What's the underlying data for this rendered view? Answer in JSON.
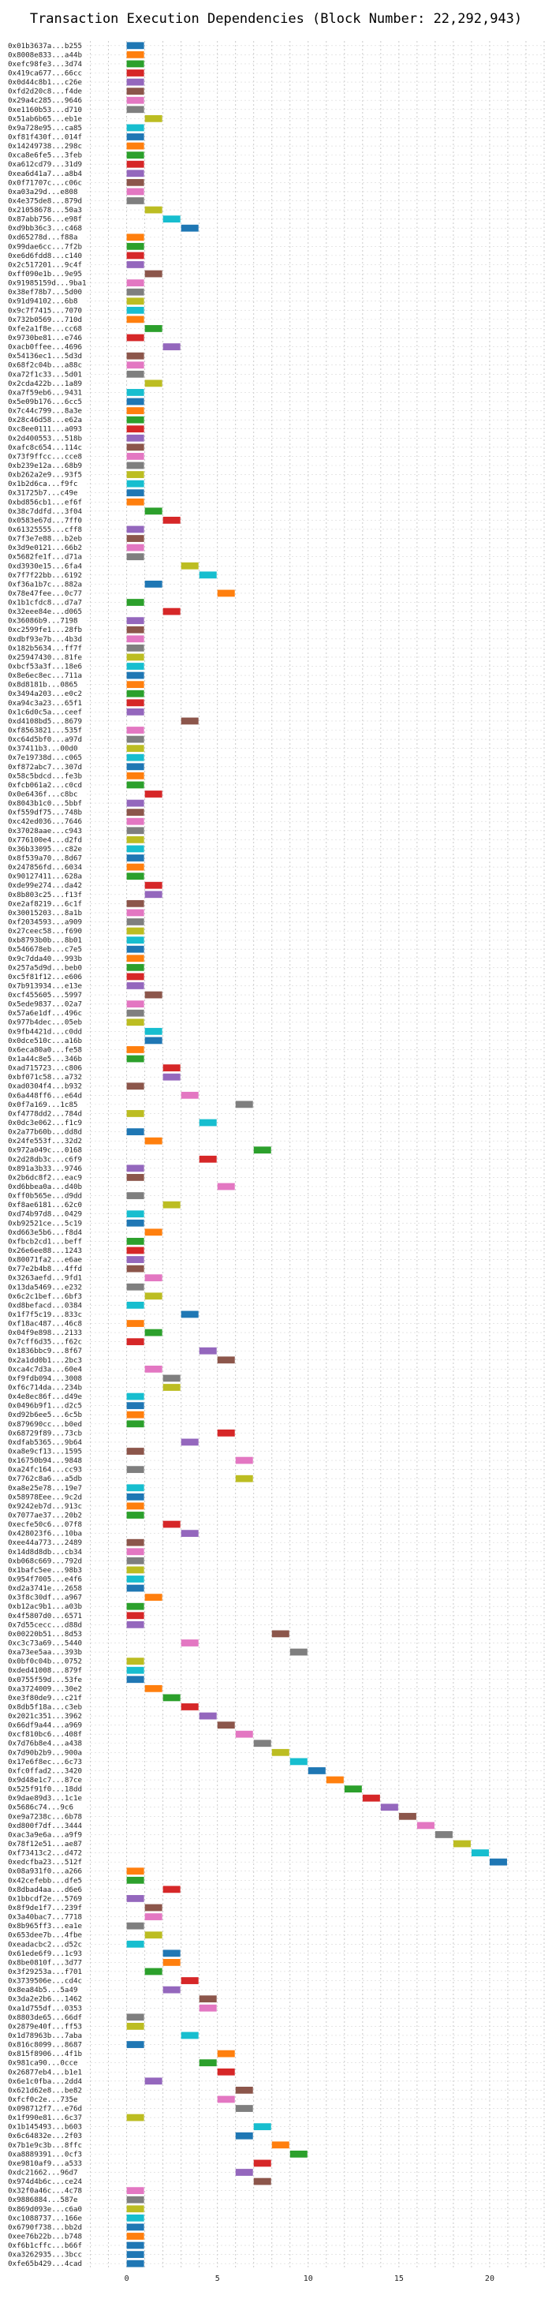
{
  "chart_data": {
    "type": "bar",
    "orientation": "horizontal",
    "title": "Transaction Execution Dependencies (Block Number: 22,292,943)",
    "xlabel": "",
    "ylabel": "",
    "xlim": [
      -2.2,
      23.0
    ],
    "x_ticks": [
      0,
      5,
      10,
      15,
      20
    ],
    "grid": true,
    "grid_style": "dotted",
    "bar_width": 1,
    "colors": [
      "#1f77b4",
      "#ff7f0e",
      "#2ca02c",
      "#d62728",
      "#9467bd",
      "#8c564b",
      "#e377c2",
      "#7f7f7f",
      "#bcbd22",
      "#17becf"
    ],
    "categories": [
      "0x01b3637a...b255",
      "0x8008e833...a44b",
      "0xefc98fe3...3d74",
      "0x419ca677...66cc",
      "0x0d44c8b1...c26e",
      "0xfd2d20c8...f4de",
      "0x29a4c285...9646",
      "0xe1160b53...d710",
      "0x51ab6b65...eb1e",
      "0x9a728e95...ca85",
      "0xf81f430f...014f",
      "0x14249738...298c",
      "0xca8e6fe5...3feb",
      "0xa612cd79...31d9",
      "0xea6d41a7...a8b4",
      "0x0f71707c...c06c",
      "0xa03a29d...e808",
      "0x4e375de8...879d",
      "0x21058678...50a3",
      "0x87abb756...e98f",
      "0xd9bb36c3...c468",
      "0xd65278d...f88a",
      "0x99dae6cc...7f2b",
      "0xe6d6fdd8...c140",
      "0x2c517201...9c4f",
      "0xff090e1b...9e95",
      "0x91985159d...9ba1",
      "0x38ef78b7...5d00",
      "0x91d94102...6b8",
      "0x9c7f7415...7070",
      "0x732b0569...710d",
      "0xfe2a1f8e...cc68",
      "0x9730be81...e746",
      "0xacb0ffee...4696",
      "0x54136ec1...5d3d",
      "0x68f2c04b...a88c",
      "0xa72f1c33...5d01",
      "0x2cda422b...1a89",
      "0xa7f59eb6...9431",
      "0x5e09b176...6cc5",
      "0x7c44c799...8a3e",
      "0x28c46d58...e62a",
      "0xc8ee0111...a093",
      "0x2d400553...518b",
      "0xafc8c654...114c",
      "0x73f9ffcc...cce8",
      "0xb239e12a...68b9",
      "0xb262a2e9...93f5",
      "0x1b2d6ca...f9fc",
      "0x31725b7...c49e",
      "0xbd856cb1...ef6f",
      "0x38c7ddfd...3f04",
      "0x0583e67d...7ff0",
      "0x61325555...cff8",
      "0x7f3e7e88...b2eb",
      "0x3d9e0121...66b2",
      "0x5682fe1f...d71a",
      "0xd3930e15...6fa4",
      "0x7f7f22bb...6192",
      "0xf36a1b7c...882a",
      "0x78e47fee...0c77",
      "0x1b1cfdc8...d7a7",
      "0x32eee84e...d065",
      "0x36086b9...7198",
      "0xc2599fe1...28fb",
      "0xdbf93e7b...4b3d",
      "0x182b5634...ff7f",
      "0x25947430...81fe",
      "0xbcf53a3f...18e6",
      "0x8e6ec8ec...711a",
      "0x8d8181b...0865",
      "0x3494a203...e0c2",
      "0xa94c3a23...65f1",
      "0x1c6d0c5a...ceef",
      "0xd4108bd5...8679",
      "0xf8563821...535f",
      "0xc64d5bf0...a97d",
      "0x37411b3...00d0",
      "0x7e19738d...c065",
      "0xf872abc7...307d",
      "0x58c5bdcd...fe3b",
      "0xfcb061a2...c0cd",
      "0x0e6436f...c8bc",
      "0x8043b1c0...5bbf",
      "0xf559df75...748b",
      "0xc42ed036...7646",
      "0x37028aae...c943",
      "0x776100e4...d2fd",
      "0x36b33095...c82e",
      "0x8f539a70...8d67",
      "0x247856fd...6034",
      "0x90127411...628a",
      "0xde99e274...da42",
      "0x8b803c25...f13f",
      "0xe2af8219...6c1f",
      "0x30015203...8a1b",
      "0xf2034593...a909",
      "0x27ceec58...f690",
      "0xb8793b0b...8b01",
      "0x546678eb...c7e5",
      "0x9c7dda40...993b",
      "0x257a5d9d...beb0",
      "0xc5f81f12...e606",
      "0x7b913934...e13e",
      "0xcf455605...5997",
      "0x5ede9837...02a7",
      "0x57a6e1df...496c",
      "0x977b4dec...05eb",
      "0x9fb4421d...c0dd",
      "0x0dce510c...a16b",
      "0x6eca80a0...fe58",
      "0x1a44c8e5...346b",
      "0xad715723...c806",
      "0xbf071c58...a732",
      "0xad0304f4...b932",
      "0x6a448ff6...e64d",
      "0x0f7a169...1c85",
      "0xf4778dd2...784d",
      "0x0dc3e062...f1c9",
      "0x2a77b60b...dd8d",
      "0x24fe553f...32d2",
      "0x972a049c...0168",
      "0x2d28db3c...c6f9",
      "0x891a3b33...9746",
      "0x2b6dc8f2...eac9",
      "0xd6bbea0a...d40b",
      "0xff0b565e...d9dd",
      "0xf8ae6181...62c0",
      "0xd74b97d8...0429",
      "0xb92521ce...5c19",
      "0xd663e5b6...f8d4",
      "0xfbcb2cd1...beff",
      "0x26e6ee88...1243",
      "0x80071fa2...e6ae",
      "0x77e2b4b8...4ffd",
      "0x3263aefd...9fd1",
      "0x13da5469...e232",
      "0x6c2c1bef...6bf3",
      "0xd8befacd...0384",
      "0x1f7f5c19...833c",
      "0xf18ac487...46c8",
      "0x04f9e898...2133",
      "0x7cff6d35...f62c",
      "0x1836bbc9...8f67",
      "0x2a1dd0b1...2bc3",
      "0xca4c7d3a...60e4",
      "0xf9fdb094...3008",
      "0xf6c714da...234b",
      "0x4e8ec86f...d49e",
      "0x0496b9f1...d2c5",
      "0xd92b6ee5...6c5b",
      "0x879690cc...b0ed",
      "0x68729f89...73cb",
      "0xdfab5365...9b64",
      "0xa8e9cf13...1595",
      "0x16750b94...9848",
      "0xa24fc164...cc93",
      "0x7762c8a6...a5db",
      "0xa8e25e78...19e7",
      "0x58978Eee...9c2d",
      "0x9242eb7d...913c",
      "0x7077ae37...20b2",
      "0xecfe50c6...07f8",
      "0x428023f6...10ba",
      "0xee44a773...2489",
      "0x14d8d8db...cb34",
      "0xb068c669...792d",
      "0x1bafc5ee...98b3",
      "0x954f7005...e4f6",
      "0xd2a3741e...2658",
      "0x3f8c30df...a967",
      "0xb12ac9b1...a03b",
      "0x4f5807d0...6571",
      "0x7d55cecc...d88d",
      "0x00220b51...8d53",
      "0xc3c73a69...5440",
      "0xa73ee5aa...393b",
      "0x0bf0c04b...0752",
      "0xded41008...879f",
      "0x0755f59d...53fe",
      "0xa3724009...30e2",
      "0xe3f80de9...c21f",
      "0x8db5f18a...c3eb",
      "0x2021c351...3962",
      "0x66df9a44...a969",
      "0xcf810bc6...408f",
      "0x7d76b8e4...a438",
      "0x7d90b2b9...900a",
      "0x17e6f8ec...6c73",
      "0xfc0ffad2...3420",
      "0x9d48e1c7...87ce",
      "0x525f91f0...18dd",
      "0x9dae89d3...1c1e",
      "0x5686c74...9c6",
      "0xe9a7238c...6b78",
      "0xd800f7df...3444",
      "0xac3a9e6a...a9f9",
      "0x78f12e51...ae87",
      "0xf73413c2...d472",
      "0xedcfba23...512f",
      "0x08a931f0...a266",
      "0x42cefebb...dfe5",
      "0x8dbad4aa...d6e6",
      "0x1bbcdf2e...5769",
      "0x8f9de1f7...239f",
      "0x3a40bac7...7718",
      "0x8b965ff3...ea1e",
      "0x653dee7b...4fbe",
      "0xeadacbc2...d52c",
      "0x61ede6f9...1c93",
      "0x8be0810f...3d77",
      "0x3f29253a...f701",
      "0x3739506e...cd4c",
      "0x8ea84b5...5a49",
      "0x3da2e2b6...1462",
      "0xa1d755df...0353",
      "0x8803de65...66df",
      "0x2879e40f...ff53",
      "0x1d78963b...7aba",
      "0x816c8099...8687",
      "0x815f8906...4f1b",
      "0x981ca90...0cce",
      "0x26877eb4...b1e1",
      "0x6e1c0fba...2dd4",
      "0x621d62e8...be82",
      "0xfcf0c2e...735e",
      "0x098712f7...e76d",
      "0x1f990e81...6c37",
      "0x1b145493...b603",
      "0x6c64832e...2f03",
      "0x7b1e9c3b...8ffc",
      "0xa8889391...0cf3",
      "0xe9810af9...a533",
      "0xdc21662...96d7",
      "0x974d4b6c...ce24",
      "0x32f0a46c...4c78",
      "0x9886884...587e",
      "0x869d093e...c6a0",
      "0xc1088737...166e",
      "0x6790f738...bb2d",
      "0xee76b22b...b748",
      "0xf6b1cffc...b66f",
      "0xa3262935...3bcc",
      "0xfe65b429...4cad"
    ],
    "starts": [
      0,
      0,
      0,
      0,
      0,
      0,
      0,
      0,
      1,
      0,
      0,
      0,
      0,
      0,
      0,
      0,
      0,
      0,
      1,
      2,
      3,
      0,
      0,
      0,
      0,
      1,
      0,
      0,
      0,
      0,
      0,
      1,
      0,
      2,
      0,
      0,
      0,
      1,
      0,
      0,
      0,
      0,
      0,
      0,
      0,
      0,
      0,
      0,
      0,
      0,
      0,
      1,
      2,
      0,
      0,
      0,
      0,
      3,
      4,
      1,
      5,
      0,
      2,
      0,
      0,
      0,
      0,
      0,
      0,
      0,
      0,
      0,
      0,
      0,
      3,
      0,
      0,
      0,
      0,
      0,
      0,
      0,
      1,
      0,
      0,
      0,
      0,
      0,
      0,
      0,
      0,
      0,
      1,
      1,
      0,
      0,
      0,
      0,
      0,
      0,
      0,
      0,
      0,
      0,
      1,
      0,
      0,
      0,
      1,
      1,
      0,
      0,
      2,
      2,
      0,
      3,
      6,
      0,
      4,
      0,
      1,
      7,
      4,
      0,
      0,
      5,
      0,
      2,
      0,
      0,
      1,
      0,
      0,
      0,
      0,
      1,
      0,
      1,
      0,
      3,
      0,
      1,
      0,
      4,
      5,
      1,
      2,
      2,
      0,
      0,
      0,
      0,
      5,
      3,
      0,
      6,
      0,
      6,
      0,
      0,
      0,
      0,
      2,
      3,
      0,
      0,
      0,
      0,
      0,
      0,
      1,
      0,
      0,
      0,
      8,
      3,
      9,
      0,
      0,
      0,
      1,
      2,
      3,
      4,
      5,
      6,
      7,
      8,
      9,
      10,
      11,
      12,
      13,
      14,
      15,
      16,
      17,
      18,
      19,
      20,
      0,
      0,
      2,
      0,
      1,
      1,
      0,
      1,
      0,
      2,
      2,
      1,
      3,
      2,
      4,
      4,
      0,
      0,
      3,
      0,
      5,
      4,
      5,
      1,
      6,
      5,
      6,
      0,
      7,
      6,
      8,
      9,
      7,
      6,
      7,
      0,
      0
    ],
    "colors_idx": [
      0,
      1,
      2,
      3,
      4,
      5,
      6,
      7,
      8,
      9,
      0,
      1,
      2,
      3,
      4,
      5,
      6,
      7,
      8,
      9,
      0,
      1,
      2,
      3,
      4,
      5,
      6,
      7,
      8,
      9,
      1,
      2,
      3,
      4,
      5,
      6,
      7,
      8,
      9,
      0,
      1,
      2,
      3,
      4,
      5,
      6,
      7,
      8,
      9,
      0,
      1,
      2,
      3,
      4,
      5,
      6,
      7,
      8,
      9,
      0,
      1,
      2,
      3,
      4,
      5,
      6,
      7,
      8,
      9,
      0,
      1,
      2,
      3,
      4,
      5,
      6,
      7,
      8,
      9,
      0,
      1,
      2,
      3,
      4,
      5,
      6,
      7,
      8,
      9,
      0,
      1,
      2,
      3,
      4,
      5,
      6,
      7,
      8,
      9,
      0,
      1,
      2,
      3,
      4,
      5,
      6,
      7,
      8,
      9,
      0,
      1,
      2,
      3,
      4,
      5,
      6,
      7,
      8,
      9,
      0,
      1,
      2,
      3,
      4,
      5,
      6,
      7,
      8,
      9,
      0,
      1,
      2,
      3,
      4,
      5,
      6,
      7,
      8,
      9,
      0,
      1,
      2,
      3,
      4,
      5,
      6,
      7,
      8,
      9,
      0,
      1,
      2,
      3,
      4,
      5,
      6,
      7,
      8,
      9,
      0,
      1,
      2,
      3,
      4,
      5,
      6,
      7,
      8,
      9,
      0,
      1,
      2,
      3,
      4,
      5,
      6,
      7,
      8,
      9,
      0,
      1,
      2,
      3,
      4,
      5,
      6,
      7,
      8,
      9,
      0,
      1,
      2,
      3,
      4,
      5,
      6,
      7,
      8,
      9,
      0,
      1,
      2,
      3,
      4,
      5,
      6,
      7,
      8,
      9,
      0,
      1,
      2,
      3,
      4,
      5,
      6,
      7,
      8,
      9,
      0,
      1,
      2,
      3,
      4,
      5,
      6,
      7,
      8,
      9,
      0,
      1,
      2,
      3,
      4,
      5,
      6,
      7,
      8,
      9,
      0,
      1
    ]
  }
}
